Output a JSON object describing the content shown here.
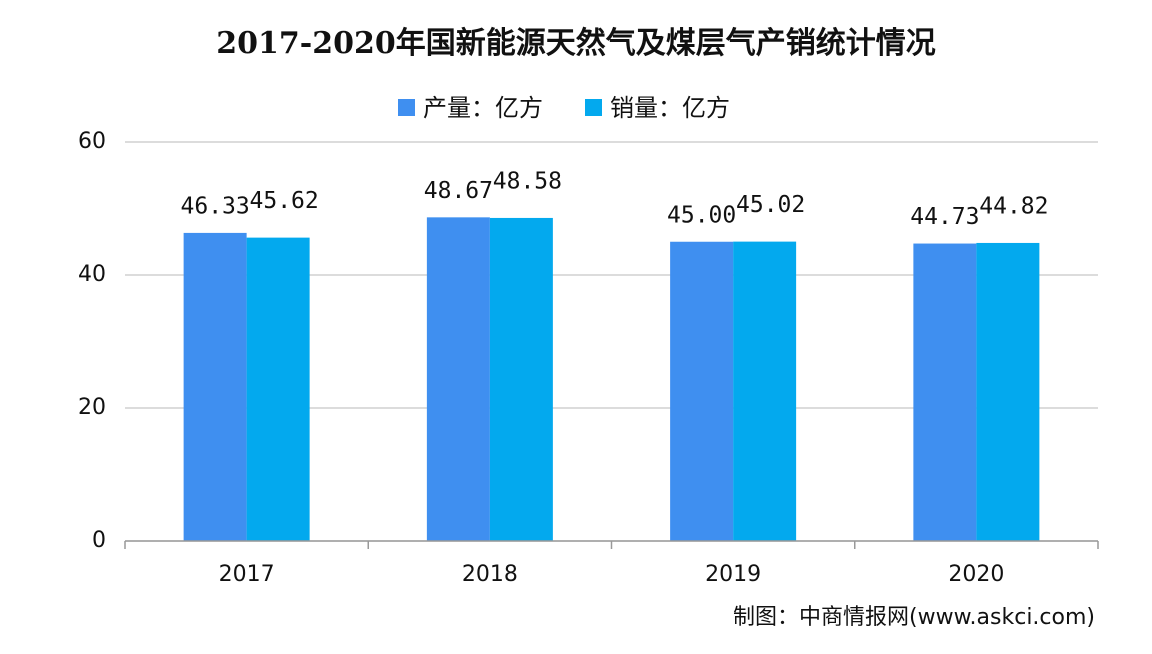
{
  "chart_data": {
    "type": "bar",
    "title": "2017-2020年国新能源天然气及煤层气产销统计情况",
    "categories": [
      "2017",
      "2018",
      "2019",
      "2020"
    ],
    "series": [
      {
        "name": "产量：亿方",
        "color": "#3f8ff0",
        "values": [
          46.33,
          48.67,
          45.0,
          44.73
        ],
        "value_labels": [
          "46.33",
          "48.67",
          "45.00",
          "44.73"
        ]
      },
      {
        "name": "销量：亿方",
        "color": "#03a9ee",
        "values": [
          45.62,
          48.58,
          45.02,
          44.82
        ],
        "value_labels": [
          "45.62",
          "48.58",
          "45.02",
          "44.82"
        ]
      }
    ],
    "ylim": [
      0,
      60
    ],
    "yticks": [
      0,
      20,
      40,
      60
    ],
    "grid": true,
    "source": "制图：中商情报网(www.askci.com)"
  }
}
